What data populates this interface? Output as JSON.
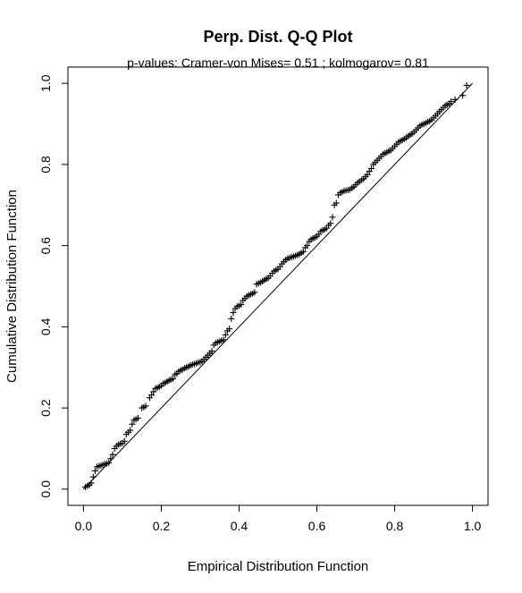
{
  "chart_data": {
    "type": "scatter",
    "title": "Perp. Dist. Q-Q Plot",
    "subtitle": "p-values: Cramer-von Mises= 0.51  ; kolmogarov= 0.81",
    "xlabel": "Empirical Distribution Function",
    "ylabel": "Cumulative Distribution Function",
    "xlim": [
      -0.04,
      1.04
    ],
    "ylim": [
      -0.04,
      1.04
    ],
    "xticks": [
      "0.0",
      "0.2",
      "0.4",
      "0.6",
      "0.8",
      "1.0"
    ],
    "yticks": [
      "0.0",
      "0.2",
      "0.4",
      "0.6",
      "0.8",
      "1.0"
    ],
    "grid": false,
    "marker": "+",
    "reference_line": {
      "x": [
        0,
        1
      ],
      "y": [
        0,
        1
      ]
    },
    "points": [
      [
        0.005,
        0.005
      ],
      [
        0.01,
        0.008
      ],
      [
        0.015,
        0.01
      ],
      [
        0.02,
        0.015
      ],
      [
        0.025,
        0.03
      ],
      [
        0.03,
        0.045
      ],
      [
        0.035,
        0.055
      ],
      [
        0.04,
        0.057
      ],
      [
        0.045,
        0.058
      ],
      [
        0.05,
        0.06
      ],
      [
        0.055,
        0.062
      ],
      [
        0.06,
        0.063
      ],
      [
        0.065,
        0.065
      ],
      [
        0.07,
        0.075
      ],
      [
        0.075,
        0.085
      ],
      [
        0.08,
        0.1
      ],
      [
        0.085,
        0.106
      ],
      [
        0.09,
        0.11
      ],
      [
        0.095,
        0.112
      ],
      [
        0.1,
        0.113
      ],
      [
        0.105,
        0.118
      ],
      [
        0.11,
        0.135
      ],
      [
        0.115,
        0.14
      ],
      [
        0.12,
        0.145
      ],
      [
        0.125,
        0.16
      ],
      [
        0.13,
        0.17
      ],
      [
        0.135,
        0.172
      ],
      [
        0.14,
        0.175
      ],
      [
        0.15,
        0.2
      ],
      [
        0.155,
        0.202
      ],
      [
        0.16,
        0.205
      ],
      [
        0.17,
        0.225
      ],
      [
        0.175,
        0.232
      ],
      [
        0.18,
        0.24
      ],
      [
        0.185,
        0.248
      ],
      [
        0.19,
        0.25
      ],
      [
        0.195,
        0.252
      ],
      [
        0.2,
        0.255
      ],
      [
        0.205,
        0.26
      ],
      [
        0.21,
        0.262
      ],
      [
        0.215,
        0.265
      ],
      [
        0.22,
        0.268
      ],
      [
        0.225,
        0.27
      ],
      [
        0.23,
        0.272
      ],
      [
        0.235,
        0.282
      ],
      [
        0.24,
        0.285
      ],
      [
        0.245,
        0.29
      ],
      [
        0.25,
        0.293
      ],
      [
        0.255,
        0.295
      ],
      [
        0.26,
        0.298
      ],
      [
        0.265,
        0.3
      ],
      [
        0.27,
        0.302
      ],
      [
        0.275,
        0.305
      ],
      [
        0.28,
        0.307
      ],
      [
        0.285,
        0.308
      ],
      [
        0.29,
        0.31
      ],
      [
        0.295,
        0.312
      ],
      [
        0.3,
        0.313
      ],
      [
        0.305,
        0.315
      ],
      [
        0.31,
        0.32
      ],
      [
        0.315,
        0.325
      ],
      [
        0.32,
        0.33
      ],
      [
        0.325,
        0.335
      ],
      [
        0.33,
        0.34
      ],
      [
        0.335,
        0.355
      ],
      [
        0.34,
        0.36
      ],
      [
        0.345,
        0.362
      ],
      [
        0.35,
        0.364
      ],
      [
        0.355,
        0.366
      ],
      [
        0.36,
        0.368
      ],
      [
        0.365,
        0.38
      ],
      [
        0.37,
        0.39
      ],
      [
        0.375,
        0.395
      ],
      [
        0.38,
        0.42
      ],
      [
        0.385,
        0.435
      ],
      [
        0.39,
        0.445
      ],
      [
        0.395,
        0.45
      ],
      [
        0.4,
        0.452
      ],
      [
        0.405,
        0.455
      ],
      [
        0.41,
        0.465
      ],
      [
        0.415,
        0.47
      ],
      [
        0.42,
        0.475
      ],
      [
        0.425,
        0.478
      ],
      [
        0.43,
        0.48
      ],
      [
        0.435,
        0.482
      ],
      [
        0.44,
        0.485
      ],
      [
        0.445,
        0.505
      ],
      [
        0.45,
        0.507
      ],
      [
        0.455,
        0.509
      ],
      [
        0.46,
        0.512
      ],
      [
        0.465,
        0.515
      ],
      [
        0.47,
        0.518
      ],
      [
        0.475,
        0.52
      ],
      [
        0.48,
        0.525
      ],
      [
        0.485,
        0.532
      ],
      [
        0.49,
        0.537
      ],
      [
        0.495,
        0.54
      ],
      [
        0.5,
        0.542
      ],
      [
        0.505,
        0.548
      ],
      [
        0.51,
        0.555
      ],
      [
        0.515,
        0.56
      ],
      [
        0.52,
        0.565
      ],
      [
        0.525,
        0.568
      ],
      [
        0.53,
        0.57
      ],
      [
        0.535,
        0.572
      ],
      [
        0.54,
        0.573
      ],
      [
        0.545,
        0.575
      ],
      [
        0.55,
        0.577
      ],
      [
        0.555,
        0.579
      ],
      [
        0.56,
        0.582
      ],
      [
        0.565,
        0.585
      ],
      [
        0.57,
        0.595
      ],
      [
        0.575,
        0.6
      ],
      [
        0.58,
        0.61
      ],
      [
        0.585,
        0.615
      ],
      [
        0.59,
        0.618
      ],
      [
        0.595,
        0.62
      ],
      [
        0.6,
        0.623
      ],
      [
        0.605,
        0.628
      ],
      [
        0.61,
        0.635
      ],
      [
        0.615,
        0.638
      ],
      [
        0.62,
        0.64
      ],
      [
        0.625,
        0.643
      ],
      [
        0.63,
        0.65
      ],
      [
        0.635,
        0.655
      ],
      [
        0.64,
        0.67
      ],
      [
        0.645,
        0.7
      ],
      [
        0.65,
        0.705
      ],
      [
        0.655,
        0.725
      ],
      [
        0.66,
        0.73
      ],
      [
        0.665,
        0.732
      ],
      [
        0.67,
        0.735
      ],
      [
        0.675,
        0.736
      ],
      [
        0.68,
        0.737
      ],
      [
        0.685,
        0.738
      ],
      [
        0.69,
        0.742
      ],
      [
        0.695,
        0.745
      ],
      [
        0.7,
        0.75
      ],
      [
        0.705,
        0.755
      ],
      [
        0.71,
        0.758
      ],
      [
        0.715,
        0.762
      ],
      [
        0.72,
        0.765
      ],
      [
        0.725,
        0.77
      ],
      [
        0.73,
        0.775
      ],
      [
        0.735,
        0.783
      ],
      [
        0.74,
        0.79
      ],
      [
        0.745,
        0.8
      ],
      [
        0.75,
        0.805
      ],
      [
        0.755,
        0.81
      ],
      [
        0.76,
        0.815
      ],
      [
        0.765,
        0.82
      ],
      [
        0.77,
        0.825
      ],
      [
        0.775,
        0.828
      ],
      [
        0.78,
        0.83
      ],
      [
        0.785,
        0.833
      ],
      [
        0.79,
        0.835
      ],
      [
        0.795,
        0.84
      ],
      [
        0.8,
        0.845
      ],
      [
        0.805,
        0.85
      ],
      [
        0.81,
        0.855
      ],
      [
        0.815,
        0.858
      ],
      [
        0.82,
        0.86
      ],
      [
        0.825,
        0.863
      ],
      [
        0.83,
        0.866
      ],
      [
        0.835,
        0.87
      ],
      [
        0.84,
        0.873
      ],
      [
        0.845,
        0.876
      ],
      [
        0.85,
        0.88
      ],
      [
        0.855,
        0.885
      ],
      [
        0.86,
        0.89
      ],
      [
        0.865,
        0.895
      ],
      [
        0.87,
        0.898
      ],
      [
        0.875,
        0.9
      ],
      [
        0.88,
        0.902
      ],
      [
        0.885,
        0.905
      ],
      [
        0.89,
        0.907
      ],
      [
        0.895,
        0.91
      ],
      [
        0.9,
        0.915
      ],
      [
        0.905,
        0.92
      ],
      [
        0.91,
        0.925
      ],
      [
        0.915,
        0.93
      ],
      [
        0.92,
        0.935
      ],
      [
        0.925,
        0.94
      ],
      [
        0.93,
        0.945
      ],
      [
        0.935,
        0.947
      ],
      [
        0.94,
        0.95
      ],
      [
        0.945,
        0.955
      ],
      [
        0.955,
        0.96
      ],
      [
        0.975,
        0.97
      ],
      [
        0.985,
        0.995
      ]
    ]
  }
}
